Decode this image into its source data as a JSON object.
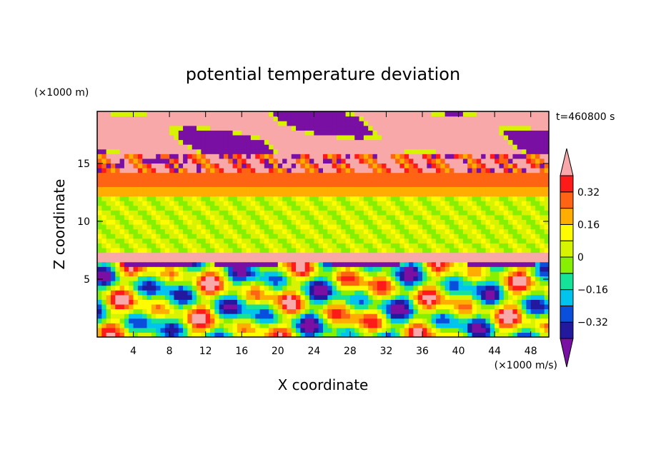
{
  "chart_data": {
    "type": "heatmap",
    "title": "potential temperature deviation",
    "xlabel": "X coordinate",
    "ylabel": "Z coordinate",
    "x_units": "(×1000 m/s)",
    "y_units": "(×1000 m)",
    "time_label": "t=460800 s",
    "xlim": [
      0,
      50
    ],
    "ylim": [
      0,
      19.5
    ],
    "x_ticks": [
      4,
      8,
      12,
      16,
      20,
      24,
      28,
      32,
      36,
      40,
      44,
      48
    ],
    "y_ticks": [
      5,
      10,
      15
    ],
    "colorbar": {
      "levels": [
        -0.4,
        -0.32,
        -0.24,
        -0.16,
        -0.08,
        0,
        0.08,
        0.16,
        0.24,
        0.32,
        0.4
      ],
      "tick_values": [
        0.32,
        0.16,
        0,
        -0.16,
        -0.32
      ],
      "tick_labels": [
        "0.32",
        "0.16",
        "0",
        "−0.16",
        "−0.32"
      ],
      "colors": [
        "#7a0fa3",
        "#23199f",
        "#0a4fdc",
        "#00c4ee",
        "#16e39a",
        "#86f000",
        "#d8f300",
        "#fffb00",
        "#ffad00",
        "#ff6414",
        "#ff1a1a",
        "#f8a8a8"
      ],
      "extend": "both"
    }
  }
}
